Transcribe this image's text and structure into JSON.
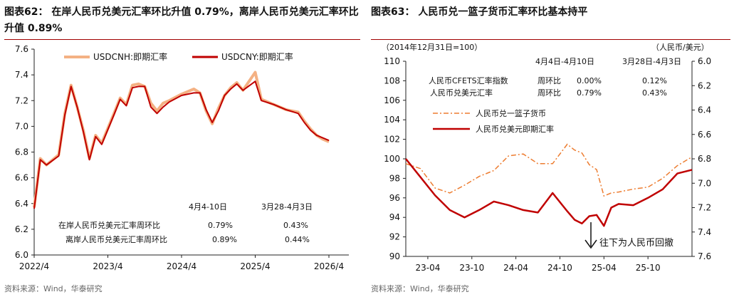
{
  "left_panel": {
    "title": "图表62：  在岸人民币兑美元汇率环比升值 0.79%，离岸人民币兑美元汇率环比升值 0.89%",
    "source": "资料来源：Wind，华泰研究",
    "table": {
      "col1": "4月4-10日",
      "col2": "3月28-4月3日",
      "rows": [
        {
          "label": "在岸人民币兑美元汇率周环比",
          "v1": "0.79%",
          "v2": "0.43%"
        },
        {
          "label": "离岸人民币兑美元汇率周环比",
          "v1": "0.89%",
          "v2": "0.44%"
        }
      ]
    }
  },
  "right_panel": {
    "title": "图表63：  人民币兑一篮子货币汇率环比基本持平",
    "source": "资料来源：Wind，华泰研究",
    "left_unit": "（2014年12月31日=100）",
    "right_unit": "（人民币/美元）",
    "table": {
      "col1": "4月4日-4月10日",
      "col2": "3月28日-4月3日",
      "rows": [
        {
          "label": "人民币CFETS汇率指数",
          "sub": "周环比",
          "v1": "0.00%",
          "v2": "0.12%"
        },
        {
          "label": "人民币兑美元汇率",
          "sub": "周环比",
          "v1": "0.79%",
          "v2": "0.43%"
        }
      ]
    },
    "annotation": "往下为人民币回撤"
  },
  "colors": {
    "cny": "#c00000",
    "cnh": "#f4b183",
    "basket": "#ed7d31",
    "axis": "#222222"
  },
  "chart_data": [
    {
      "type": "line",
      "xlabel": "",
      "ylabel": "",
      "ylim": [
        6.0,
        7.6
      ],
      "yticks": [
        "6.0",
        "6.2",
        "6.4",
        "6.6",
        "6.8",
        "7.0",
        "7.2",
        "7.4",
        "7.6"
      ],
      "xtick_labels": [
        "2022/4",
        "2023/4",
        "2024/4",
        "2025/4",
        "2026/4"
      ],
      "legend_position": "top",
      "series": [
        {
          "name": "USDCNH:即期汇率",
          "x": [
            "2022-04",
            "2022-05",
            "2022-06",
            "2022-08",
            "2022-09",
            "2022-10",
            "2022-11",
            "2022-12",
            "2023-01",
            "2023-02",
            "2023-03",
            "2023-05",
            "2023-06",
            "2023-07",
            "2023-08",
            "2023-09",
            "2023-10",
            "2023-11",
            "2023-12",
            "2024-01",
            "2024-02",
            "2024-04",
            "2024-06",
            "2024-07",
            "2024-08",
            "2024-09",
            "2024-10",
            "2024-11",
            "2024-12",
            "2025-01",
            "2025-02",
            "2025-04",
            "2025-05",
            "2025-07",
            "2025-09",
            "2025-11",
            "2025-12",
            "2026-01",
            "2026-02",
            "2026-03",
            "2026-04"
          ],
          "values": [
            6.37,
            6.75,
            6.7,
            6.78,
            7.1,
            7.32,
            7.15,
            6.97,
            6.75,
            6.93,
            6.87,
            7.1,
            7.22,
            7.17,
            7.32,
            7.33,
            7.31,
            7.18,
            7.12,
            7.18,
            7.2,
            7.25,
            7.29,
            7.26,
            7.12,
            7.02,
            7.14,
            7.24,
            7.3,
            7.34,
            7.28,
            7.42,
            7.21,
            7.17,
            7.13,
            7.11,
            7.04,
            6.98,
            6.93,
            6.9,
            6.88
          ]
        },
        {
          "name": "USDCNY:即期汇率",
          "x": [
            "2022-04",
            "2022-05",
            "2022-06",
            "2022-08",
            "2022-09",
            "2022-10",
            "2022-11",
            "2022-12",
            "2023-01",
            "2023-02",
            "2023-03",
            "2023-05",
            "2023-06",
            "2023-07",
            "2023-08",
            "2023-09",
            "2023-10",
            "2023-11",
            "2023-12",
            "2024-01",
            "2024-02",
            "2024-04",
            "2024-06",
            "2024-07",
            "2024-08",
            "2024-09",
            "2024-10",
            "2024-11",
            "2024-12",
            "2025-01",
            "2025-02",
            "2025-04",
            "2025-05",
            "2025-07",
            "2025-09",
            "2025-11",
            "2025-12",
            "2026-01",
            "2026-02",
            "2026-03",
            "2026-04"
          ],
          "values": [
            6.36,
            6.74,
            6.7,
            6.77,
            7.09,
            7.31,
            7.15,
            6.96,
            6.74,
            6.92,
            6.86,
            7.09,
            7.21,
            7.16,
            7.3,
            7.31,
            7.31,
            7.15,
            7.1,
            7.15,
            7.19,
            7.24,
            7.26,
            7.26,
            7.13,
            7.03,
            7.12,
            7.24,
            7.29,
            7.33,
            7.28,
            7.35,
            7.2,
            7.17,
            7.13,
            7.1,
            7.03,
            6.97,
            6.93,
            6.91,
            6.89
          ]
        }
      ]
    },
    {
      "type": "line",
      "xlabel": "",
      "ylabel": "",
      "ylim": [
        90,
        110
      ],
      "yticks": [
        "90",
        "92",
        "94",
        "96",
        "98",
        "100",
        "102",
        "104",
        "106",
        "108",
        "110"
      ],
      "y2lim": [
        7.6,
        6.0
      ],
      "y2ticks": [
        "6.0",
        "6.2",
        "6.4",
        "6.6",
        "6.8",
        "7.0",
        "7.2",
        "7.4",
        "7.6"
      ],
      "xtick_labels": [
        "23-04",
        "23-10",
        "24-04",
        "24-10",
        "25-04",
        "25-10"
      ],
      "series": [
        {
          "name": "人民币兑一篮子货币",
          "axis": "left",
          "x": [
            "2023-01",
            "2023-03",
            "2023-05",
            "2023-07",
            "2023-09",
            "2023-11",
            "2024-01",
            "2024-03",
            "2024-05",
            "2024-07",
            "2024-09",
            "2024-11",
            "2024-12",
            "2025-01",
            "2025-02",
            "2025-03",
            "2025-04",
            "2025-05",
            "2025-06",
            "2025-08",
            "2025-10",
            "2025-12",
            "2026-02",
            "2026-04"
          ],
          "values": [
            99.5,
            99.0,
            97.0,
            96.5,
            97.3,
            98.2,
            98.8,
            100.3,
            100.5,
            99.5,
            99.5,
            101.5,
            100.9,
            100.6,
            99.4,
            98.9,
            96.2,
            96.5,
            96.6,
            96.9,
            97.1,
            98.0,
            99.3,
            100.2
          ]
        },
        {
          "name": "人民币兑美元即期汇率",
          "axis": "right",
          "x": [
            "2023-01",
            "2023-03",
            "2023-05",
            "2023-07",
            "2023-09",
            "2023-11",
            "2024-01",
            "2024-03",
            "2024-05",
            "2024-07",
            "2024-09",
            "2024-11",
            "2024-12",
            "2025-01",
            "2025-02",
            "2025-03",
            "2025-04",
            "2025-05",
            "2025-06",
            "2025-08",
            "2025-10",
            "2025-12",
            "2026-02",
            "2026-04"
          ],
          "values": [
            6.8,
            6.95,
            7.1,
            7.22,
            7.28,
            7.22,
            7.15,
            7.18,
            7.22,
            7.24,
            7.08,
            7.23,
            7.3,
            7.33,
            7.27,
            7.26,
            7.35,
            7.2,
            7.17,
            7.18,
            7.12,
            7.05,
            6.92,
            6.89
          ]
        }
      ]
    }
  ]
}
